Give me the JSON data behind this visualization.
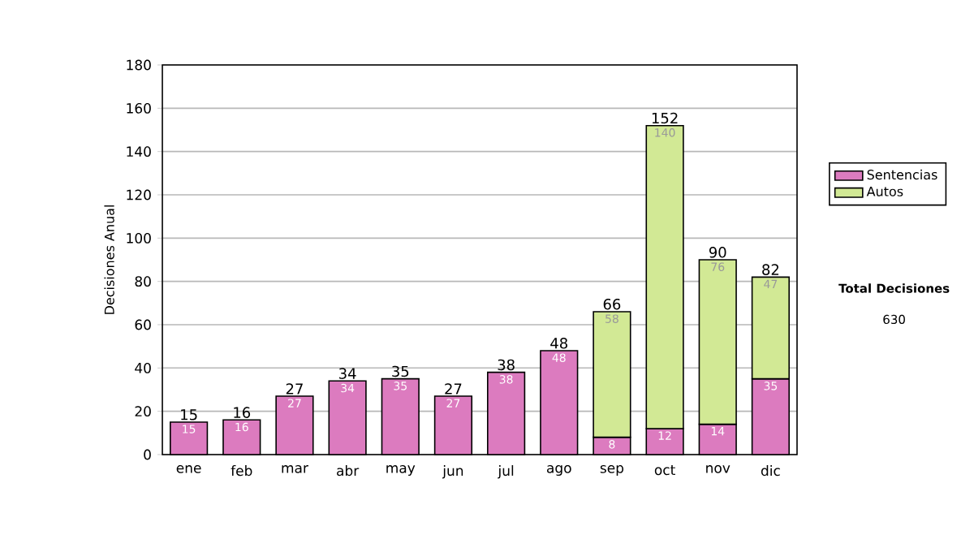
{
  "chart_data": {
    "type": "bar",
    "stacked": true,
    "ylabel": "Decisiones Anual",
    "categories": [
      "ene",
      "feb",
      "mar",
      "abr",
      "may",
      "jun",
      "jul",
      "ago",
      "sep",
      "oct",
      "nov",
      "dic"
    ],
    "series": [
      {
        "name": "Sentencias",
        "color": "#dc7bbf",
        "values": [
          15,
          16,
          27,
          34,
          35,
          27,
          38,
          48,
          8,
          12,
          14,
          35
        ]
      },
      {
        "name": "Autos",
        "color": "#d2e995",
        "values": [
          null,
          null,
          null,
          null,
          null,
          null,
          null,
          null,
          58,
          140,
          76,
          47
        ]
      }
    ],
    "totals": [
      "15",
      "16",
      "27",
      "34",
      "35",
      "27",
      "38",
      "48",
      "66",
      "152",
      "90",
      "82"
    ],
    "ylim": [
      0,
      180
    ],
    "yticks": [
      0,
      20,
      40,
      60,
      80,
      100,
      120,
      140,
      160,
      180
    ],
    "grid": "y",
    "legend": "right",
    "data_labels": true,
    "annotations": [
      "Total Decisiones",
      "630"
    ]
  }
}
